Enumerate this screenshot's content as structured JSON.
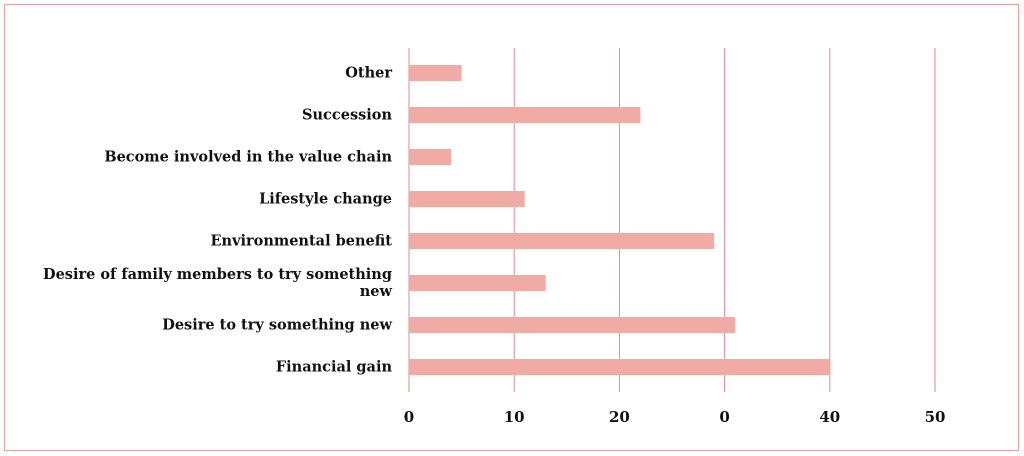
{
  "chart_data": {
    "type": "bar",
    "orientation": "horizontal",
    "categories": [
      "Other",
      "Succession",
      "Become involved in the value chain",
      "Lifestyle change",
      "Environmental benefit",
      "Desire of family members to try something new",
      "Desire to try something new",
      "Financial gain"
    ],
    "values": [
      5,
      22,
      4,
      11,
      29,
      13,
      31,
      40
    ],
    "color": "#f0aca4",
    "xlim": [
      0,
      50
    ],
    "xticks": [
      0,
      10,
      20,
      {
        "value": 30,
        "label": "0"
      },
      40,
      50
    ],
    "grid": true
  }
}
